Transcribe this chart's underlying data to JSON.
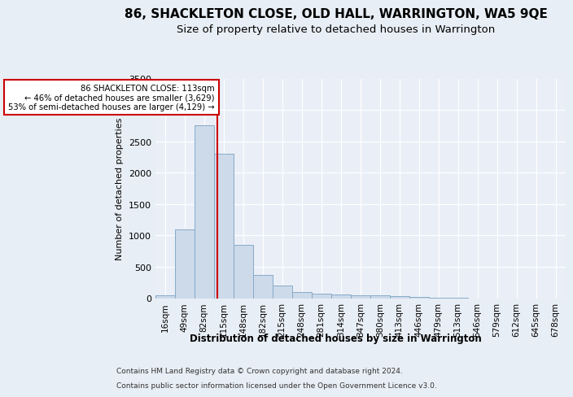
{
  "title": "86, SHACKLETON CLOSE, OLD HALL, WARRINGTON, WA5 9QE",
  "subtitle": "Size of property relative to detached houses in Warrington",
  "xlabel": "Distribution of detached houses by size in Warrington",
  "ylabel": "Number of detached properties",
  "footnote1": "Contains HM Land Registry data © Crown copyright and database right 2024.",
  "footnote2": "Contains public sector information licensed under the Open Government Licence v3.0.",
  "bin_labels": [
    "16sqm",
    "49sqm",
    "82sqm",
    "115sqm",
    "148sqm",
    "182sqm",
    "215sqm",
    "248sqm",
    "281sqm",
    "314sqm",
    "347sqm",
    "380sqm",
    "413sqm",
    "446sqm",
    "479sqm",
    "513sqm",
    "546sqm",
    "579sqm",
    "612sqm",
    "645sqm",
    "678sqm"
  ],
  "bar_heights": [
    50,
    1100,
    2750,
    2300,
    850,
    370,
    200,
    100,
    70,
    55,
    50,
    40,
    30,
    20,
    5,
    5,
    0,
    0,
    0,
    0,
    0
  ],
  "bar_color": "#ccdaea",
  "bar_edge_color": "#88aac8",
  "property_line_x": 2.66,
  "property_line_label": "86 SHACKLETON CLOSE: 113sqm",
  "annotation_line1": "← 46% of detached houses are smaller (3,629)",
  "annotation_line2": "53% of semi-detached houses are larger (4,129) →",
  "annotation_box_color": "#ffffff",
  "annotation_box_edge": "#cc0000",
  "property_line_color": "#cc0000",
  "ylim": [
    0,
    3500
  ],
  "yticks": [
    0,
    500,
    1000,
    1500,
    2000,
    2500,
    3000,
    3500
  ],
  "background_color": "#e8eef5",
  "axes_bg_color": "#eaeff7",
  "grid_color": "#ffffff",
  "title_fontsize": 11,
  "subtitle_fontsize": 9.5
}
